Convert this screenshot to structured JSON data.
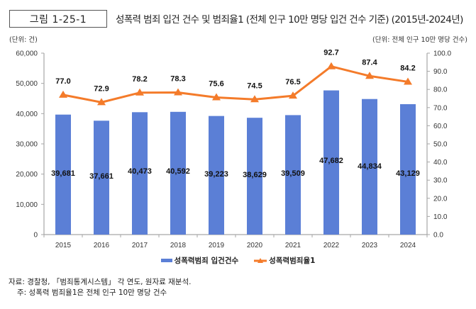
{
  "figure": {
    "label": "그림 1-25-1",
    "title": "성폭력 범죄 입건 건수 및 범죄율1 (전체 인구 10만 명당 입건 건수 기준) (2015년-2024년)",
    "unit_left": "(단위: 건)",
    "unit_right": "(단위: 전체 인구 10만 명당 건수)",
    "source": "자료: 경찰청, 「범죄통계시스템」 각 연도, 원자료 재분석.",
    "note": "주: 성폭력 범죄율1은 전체 인구 10만 명당 건수"
  },
  "colors": {
    "bar": "#5b7fd6",
    "line": "#f47b2a",
    "axis": "#a6a6a6"
  },
  "chart_data": {
    "type": "bar+line",
    "title": "성폭력 범죄 입건 건수 및 범죄율1 (전체 인구 10만 명당 입건 건수 기준) (2015년-2024년)",
    "categories": [
      "2015",
      "2016",
      "2017",
      "2018",
      "2019",
      "2020",
      "2021",
      "2022",
      "2023",
      "2024"
    ],
    "series": [
      {
        "name": "성폭력범죄 입건건수",
        "type": "bar",
        "axis": "left",
        "values": [
          39681,
          37661,
          40473,
          40592,
          39223,
          38629,
          39509,
          47682,
          44834,
          43129
        ],
        "labels": [
          "39,681",
          "37,661",
          "40,473",
          "40,592",
          "39,223",
          "38,629",
          "39,509",
          "47,682",
          "44,834",
          "43,129"
        ]
      },
      {
        "name": "성폭력범죄율1",
        "type": "line",
        "marker": "triangle",
        "axis": "right",
        "values": [
          77.0,
          72.9,
          78.2,
          78.3,
          75.6,
          74.5,
          76.5,
          92.7,
          87.4,
          84.2
        ],
        "labels": [
          "77.0",
          "72.9",
          "78.2",
          "78.3",
          "75.6",
          "74.5",
          "76.5",
          "92.7",
          "87.4",
          "84.2"
        ]
      }
    ],
    "y_left": {
      "ylim": [
        0,
        60000
      ],
      "ticks": [
        0,
        10000,
        20000,
        30000,
        40000,
        50000,
        60000
      ],
      "tick_labels": [
        "0",
        "10,000",
        "20,000",
        "30,000",
        "40,000",
        "50,000",
        "60,000"
      ],
      "label": "(단위: 건)"
    },
    "y_right": {
      "ylim": [
        0,
        100
      ],
      "ticks": [
        0,
        10,
        20,
        30,
        40,
        50,
        60,
        70,
        80,
        90,
        100
      ],
      "tick_labels": [
        "0.0",
        "10.0",
        "20.0",
        "30.0",
        "40.0",
        "50.0",
        "60.0",
        "70.0",
        "80.0",
        "90.0",
        "100.0"
      ],
      "label": "(단위: 전체 인구 10만 명당 건수)"
    },
    "xlabel": "",
    "grid": false,
    "legend": {
      "position": "bottom",
      "entries": [
        "성폭력범죄 입건건수",
        "성폭력범죄율1"
      ]
    }
  }
}
